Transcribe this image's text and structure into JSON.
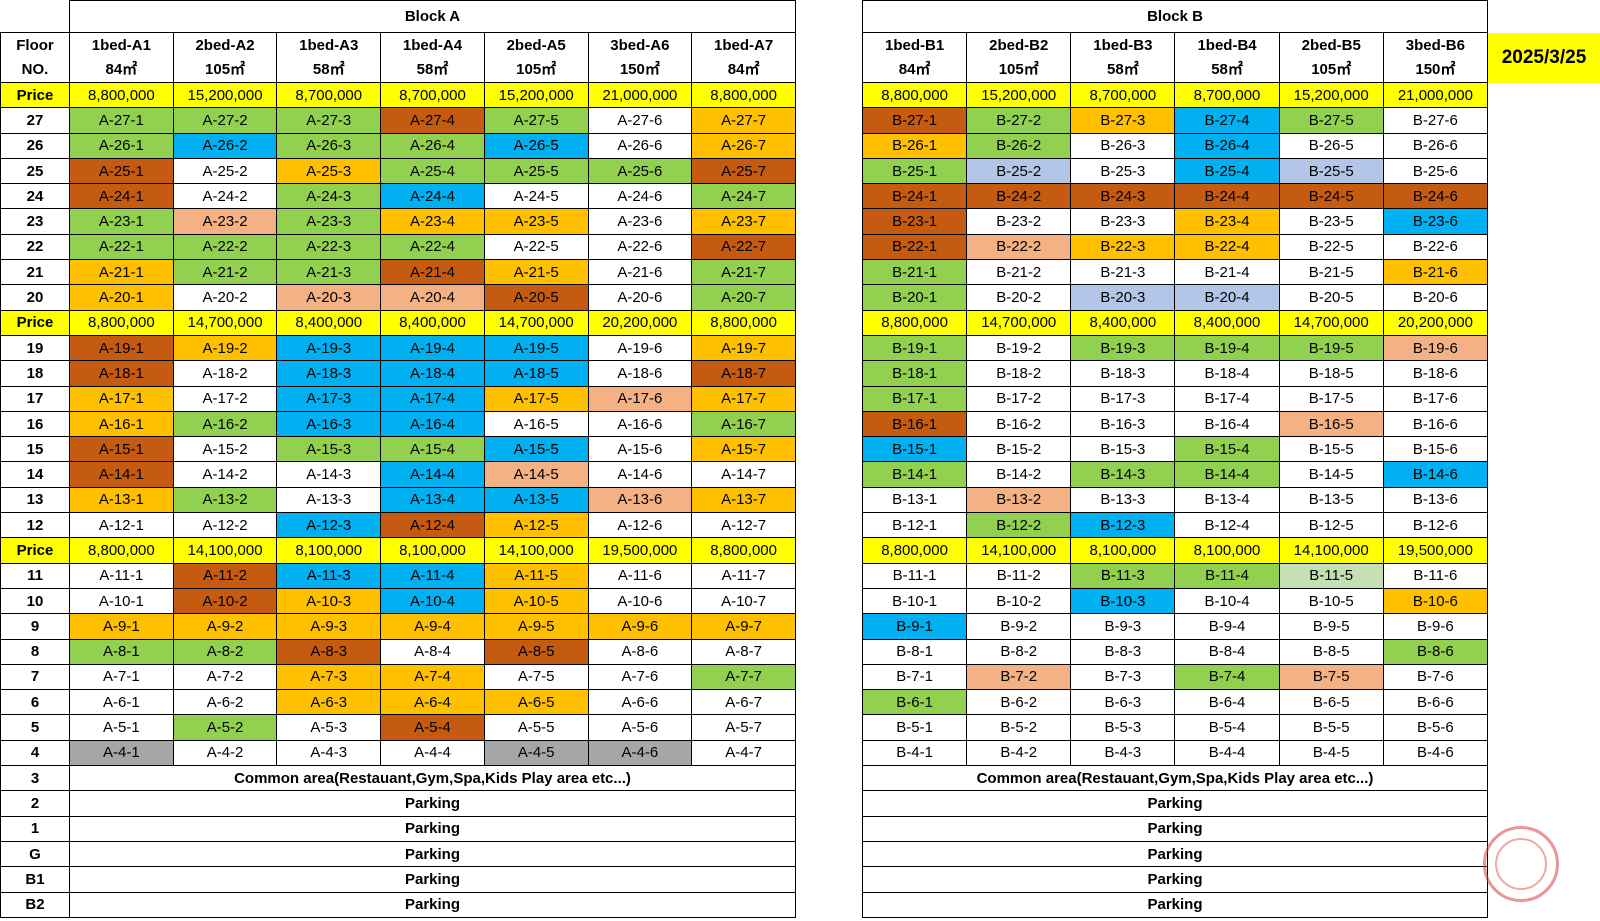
{
  "date": "2025/3/25",
  "colors": {
    "G": "#92d050",
    "C": "#00b0f0",
    "O": "#ffc000",
    "R": "#c55a11",
    "P": "#f4b183",
    "S": "#a6a6a6",
    "L": "#b4c6e7",
    "g": "#c5e0b4",
    "price": "#ffff00"
  },
  "floor_header": [
    "Floor",
    "NO."
  ],
  "price_label": "Price",
  "common_area": "Common area(Restauant,Gym,Spa,Kids Play area etc...)",
  "lower_floors": [
    {
      "floor": "3",
      "label": "Common area(Restauant,Gym,Spa,Kids Play area etc...)"
    },
    {
      "floor": "2",
      "label": "Parking"
    },
    {
      "floor": "1",
      "label": "Parking"
    },
    {
      "floor": "G",
      "label": "Parking"
    },
    {
      "floor": "B1",
      "label": "Parking"
    },
    {
      "floor": "B2",
      "label": "Parking"
    }
  ],
  "blocks": [
    {
      "title": "Block A",
      "prefix": "A",
      "units": [
        {
          "type": "1bed-A1",
          "area": "84㎡"
        },
        {
          "type": "2bed-A2",
          "area": "105㎡"
        },
        {
          "type": "1bed-A3",
          "area": "58㎡"
        },
        {
          "type": "1bed-A4",
          "area": "58㎡"
        },
        {
          "type": "2bed-A5",
          "area": "105㎡"
        },
        {
          "type": "3bed-A6",
          "area": "150㎡"
        },
        {
          "type": "1bed-A7",
          "area": "84㎡"
        }
      ],
      "price_tiers": [
        {
          "prices": [
            "8,800,000",
            "15,200,000",
            "8,700,000",
            "8,700,000",
            "15,200,000",
            "21,000,000",
            "8,800,000"
          ],
          "floors": [
            {
              "floor": "27",
              "colors": "GGGRGWO"
            },
            {
              "floor": "26",
              "colors": "GCGGCWO"
            },
            {
              "floor": "25",
              "colors": "RWOGGGR"
            },
            {
              "floor": "24",
              "colors": "RWGCWWG"
            },
            {
              "floor": "23",
              "colors": "GPGOOWO"
            },
            {
              "floor": "22",
              "colors": "GGGGWWR"
            },
            {
              "floor": "21",
              "colors": "OGGROWG"
            },
            {
              "floor": "20",
              "colors": "OWPPRWG"
            }
          ]
        },
        {
          "prices": [
            "8,800,000",
            "14,700,000",
            "8,400,000",
            "8,400,000",
            "14,700,000",
            "20,200,000",
            "8,800,000"
          ],
          "floors": [
            {
              "floor": "19",
              "colors": "ROCCCWO"
            },
            {
              "floor": "18",
              "colors": "RWCCCWR"
            },
            {
              "floor": "17",
              "colors": "OWCCOPO"
            },
            {
              "floor": "16",
              "colors": "OGCCWWG"
            },
            {
              "floor": "15",
              "colors": "RWGGCWO"
            },
            {
              "floor": "14",
              "colors": "RWWCPWW"
            },
            {
              "floor": "13",
              "colors": "OGWCCPO"
            },
            {
              "floor": "12",
              "colors": "WWCROWW"
            }
          ]
        },
        {
          "prices": [
            "8,800,000",
            "14,100,000",
            "8,100,000",
            "8,100,000",
            "14,100,000",
            "19,500,000",
            "8,800,000"
          ],
          "floors": [
            {
              "floor": "11",
              "colors": "WRCCOWW"
            },
            {
              "floor": "10",
              "colors": "WROCOWW"
            },
            {
              "floor": "9",
              "colors": "OOOOOOO"
            },
            {
              "floor": "8",
              "colors": "GGRWRWW"
            },
            {
              "floor": "7",
              "colors": "WWOOWWG"
            },
            {
              "floor": "6",
              "colors": "WWOOOWW"
            },
            {
              "floor": "5",
              "colors": "WGWRWWW"
            },
            {
              "floor": "4",
              "colors": "SWWWSSW"
            }
          ]
        }
      ]
    },
    {
      "title": "Block B",
      "prefix": "B",
      "units": [
        {
          "type": "1bed-B1",
          "area": "84㎡"
        },
        {
          "type": "2bed-B2",
          "area": "105㎡"
        },
        {
          "type": "1bed-B3",
          "area": "58㎡"
        },
        {
          "type": "1bed-B4",
          "area": "58㎡"
        },
        {
          "type": "2bed-B5",
          "area": "105㎡"
        },
        {
          "type": "3bed-B6",
          "area": "150㎡"
        }
      ],
      "price_tiers": [
        {
          "prices": [
            "8,800,000",
            "15,200,000",
            "8,700,000",
            "8,700,000",
            "15,200,000",
            "21,000,000"
          ],
          "floors": [
            {
              "floor": "27",
              "colors": "RGOCGW"
            },
            {
              "floor": "26",
              "colors": "OGWCWW"
            },
            {
              "floor": "25",
              "colors": "GLWCLW"
            },
            {
              "floor": "24",
              "colors": "RRRRRR"
            },
            {
              "floor": "23",
              "colors": "RWWOWC"
            },
            {
              "floor": "22",
              "colors": "RPOOWW"
            },
            {
              "floor": "21",
              "colors": "GWWWWO"
            },
            {
              "floor": "20",
              "colors": "GWLLWW"
            }
          ]
        },
        {
          "prices": [
            "8,800,000",
            "14,700,000",
            "8,400,000",
            "8,400,000",
            "14,700,000",
            "20,200,000"
          ],
          "floors": [
            {
              "floor": "19",
              "colors": "GWGGGP"
            },
            {
              "floor": "18",
              "colors": "GWWWWW"
            },
            {
              "floor": "17",
              "colors": "GWWWWW"
            },
            {
              "floor": "16",
              "colors": "RWWWPW"
            },
            {
              "floor": "15",
              "colors": "CWWGWW"
            },
            {
              "floor": "14",
              "colors": "GWGGWC"
            },
            {
              "floor": "13",
              "colors": "WPWWWW"
            },
            {
              "floor": "12",
              "colors": "WGCWWW"
            }
          ]
        },
        {
          "prices": [
            "8,800,000",
            "14,100,000",
            "8,100,000",
            "8,100,000",
            "14,100,000",
            "19,500,000"
          ],
          "floors": [
            {
              "floor": "11",
              "colors": "WWGGgW"
            },
            {
              "floor": "10",
              "colors": "WWCWWO"
            },
            {
              "floor": "9",
              "colors": "CWWWWW"
            },
            {
              "floor": "8",
              "colors": "WWWWWG"
            },
            {
              "floor": "7",
              "colors": "WPWGPW"
            },
            {
              "floor": "6",
              "colors": "GWWWWW"
            },
            {
              "floor": "5",
              "colors": "WWWWWW"
            },
            {
              "floor": "4",
              "colors": "WWWWWW"
            }
          ]
        }
      ]
    }
  ]
}
